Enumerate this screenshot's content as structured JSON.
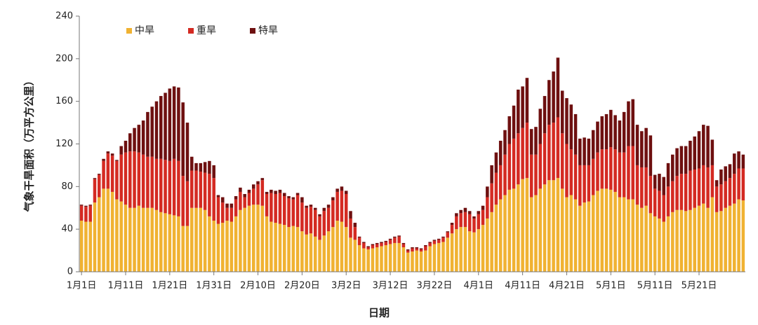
{
  "chart_data": {
    "type": "stacked_bar",
    "y_label": "气象干旱面积（万平方公里）",
    "x_label": "日期",
    "categories": [
      "1月1日",
      null,
      null,
      null,
      null,
      null,
      null,
      null,
      null,
      null,
      "1月11日",
      null,
      null,
      null,
      null,
      null,
      null,
      null,
      null,
      null,
      "1月21日",
      null,
      null,
      null,
      null,
      null,
      null,
      null,
      null,
      null,
      "1月31日",
      null,
      null,
      null,
      null,
      null,
      null,
      null,
      null,
      null,
      "2月10日",
      null,
      null,
      null,
      null,
      null,
      null,
      null,
      null,
      null,
      "2月20日",
      null,
      null,
      null,
      null,
      null,
      null,
      null,
      null,
      null,
      "3月2日",
      null,
      null,
      null,
      null,
      null,
      null,
      null,
      null,
      null,
      "3月12日",
      null,
      null,
      null,
      null,
      null,
      null,
      null,
      null,
      null,
      "3月22日",
      null,
      null,
      null,
      null,
      null,
      null,
      null,
      null,
      null,
      "4月1日",
      null,
      null,
      null,
      null,
      null,
      null,
      null,
      null,
      null,
      "4月11日",
      null,
      null,
      null,
      null,
      null,
      null,
      null,
      null,
      null,
      "4月21日",
      null,
      null,
      null,
      null,
      null,
      null,
      null,
      null,
      null,
      "5月1日",
      null,
      null,
      null,
      null,
      null,
      null,
      null,
      null,
      null,
      "5月11日",
      null,
      null,
      null,
      null,
      null,
      null,
      null,
      null,
      null,
      "5月21日",
      null,
      null,
      null,
      null,
      null,
      null,
      null,
      null,
      null,
      null
    ],
    "series": [
      {
        "name": "中旱",
        "color": "#f0b232",
        "values": [
          48,
          47,
          47,
          65,
          70,
          78,
          78,
          75,
          68,
          66,
          63,
          60,
          60,
          62,
          60,
          60,
          60,
          58,
          56,
          55,
          54,
          53,
          52,
          43,
          43,
          60,
          60,
          60,
          58,
          52,
          48,
          45,
          46,
          48,
          47,
          52,
          58,
          60,
          62,
          63,
          63,
          62,
          52,
          47,
          46,
          45,
          44,
          42,
          43,
          42,
          38,
          35,
          36,
          33,
          30,
          34,
          38,
          42,
          48,
          47,
          42,
          32,
          30,
          25,
          22,
          21,
          22,
          23,
          24,
          25,
          26,
          27,
          27,
          23,
          18,
          19,
          20,
          19,
          20,
          24,
          26,
          27,
          28,
          32,
          36,
          40,
          42,
          42,
          38,
          37,
          40,
          44,
          50,
          56,
          63,
          68,
          72,
          77,
          78,
          82,
          87,
          88,
          70,
          72,
          78,
          82,
          86,
          86,
          88,
          78,
          70,
          72,
          68,
          62,
          65,
          66,
          72,
          76,
          78,
          78,
          77,
          75,
          70,
          70,
          68,
          68,
          63,
          60,
          62,
          55,
          52,
          50,
          47,
          52,
          56,
          58,
          58,
          57,
          58,
          60,
          62,
          64,
          60,
          70,
          56,
          57,
          60,
          62,
          64,
          68,
          67
        ]
      },
      {
        "name": "重旱",
        "color": "#d42a22",
        "values": [
          14,
          14,
          15,
          22,
          21,
          26,
          33,
          34,
          36,
          44,
          49,
          53,
          53,
          50,
          50,
          48,
          48,
          48,
          50,
          50,
          50,
          53,
          52,
          47,
          42,
          35,
          35,
          34,
          35,
          40,
          40,
          25,
          19,
          12,
          13,
          16,
          17,
          10,
          12,
          15,
          19,
          24,
          21,
          27,
          27,
          29,
          27,
          27,
          25,
          30,
          27,
          25,
          25,
          25,
          22,
          23,
          22,
          25,
          27,
          29,
          31,
          18,
          12,
          7,
          5,
          2,
          3,
          3,
          3,
          3,
          4,
          5,
          6,
          3,
          2,
          3,
          2,
          2,
          4,
          3,
          3,
          3,
          4,
          5,
          8,
          12,
          13,
          14,
          16,
          13,
          14,
          14,
          20,
          27,
          30,
          32,
          38,
          43,
          47,
          48,
          48,
          52,
          40,
          38,
          42,
          48,
          52,
          54,
          57,
          52,
          50,
          43,
          42,
          38,
          35,
          34,
          34,
          36,
          37,
          37,
          40,
          40,
          42,
          42,
          50,
          50,
          37,
          38,
          36,
          35,
          26,
          26,
          25,
          28,
          29,
          32,
          34,
          35,
          37,
          36,
          35,
          36,
          38,
          30,
          24,
          25,
          25,
          26,
          28,
          29,
          30
        ]
      },
      {
        "name": "特旱",
        "color": "#6e1010",
        "values": [
          1,
          1,
          1,
          1,
          1,
          2,
          2,
          2,
          1,
          8,
          11,
          17,
          22,
          26,
          32,
          42,
          47,
          54,
          59,
          63,
          68,
          68,
          69,
          69,
          55,
          13,
          7,
          8,
          10,
          12,
          12,
          2,
          5,
          4,
          4,
          3,
          4,
          3,
          3,
          4,
          3,
          2,
          2,
          3,
          3,
          3,
          3,
          2,
          2,
          2,
          5,
          2,
          2,
          2,
          2,
          3,
          3,
          3,
          3,
          4,
          3,
          7,
          4,
          1,
          1,
          1,
          1,
          1,
          1,
          1,
          1,
          1,
          1,
          1,
          1,
          1,
          1,
          1,
          1,
          1,
          1,
          1,
          1,
          1,
          2,
          3,
          3,
          4,
          3,
          2,
          3,
          4,
          10,
          17,
          19,
          23,
          23,
          26,
          31,
          41,
          39,
          42,
          24,
          26,
          33,
          35,
          42,
          48,
          56,
          40,
          43,
          42,
          38,
          25,
          26,
          25,
          27,
          29,
          31,
          33,
          35,
          32,
          30,
          38,
          42,
          44,
          38,
          34,
          37,
          38,
          13,
          16,
          17,
          22,
          25,
          26,
          26,
          26,
          28,
          31,
          35,
          38,
          39,
          24,
          6,
          14,
          14,
          13,
          19,
          16,
          13
        ]
      }
    ],
    "ylim": [
      0,
      240
    ],
    "yticks": [
      0,
      40,
      80,
      120,
      160,
      200,
      240
    ],
    "legend": "top-left",
    "grid": false
  }
}
